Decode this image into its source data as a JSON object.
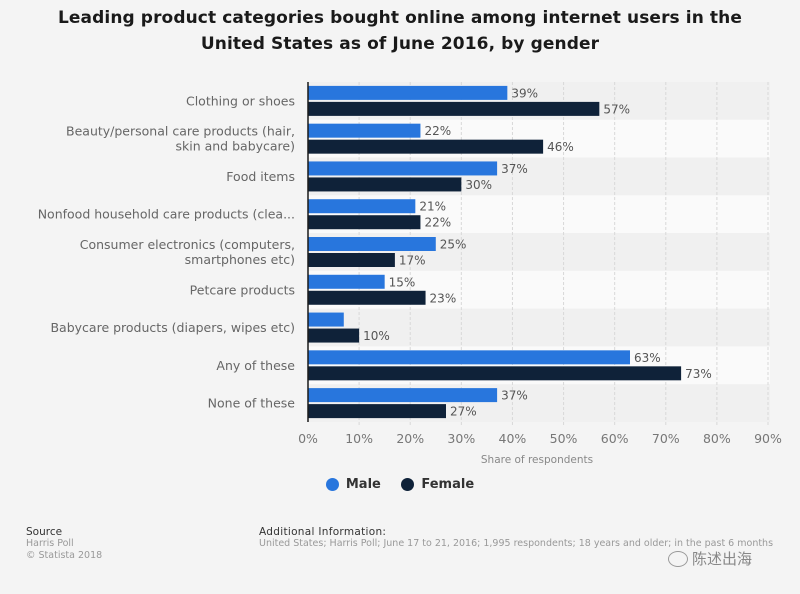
{
  "chart_data": {
    "type": "bar",
    "orientation": "horizontal",
    "title": "Leading product categories bought online among internet users in the United States as of June 2016, by gender",
    "title_lines": [
      "Leading product categories bought online among internet users in the",
      "United States as of June 2016, by gender"
    ],
    "categories": [
      "Clothing or shoes",
      "Beauty/personal care products (hair, skin and babycare)",
      "Food items",
      "Nonfood household care products (clea...",
      "Consumer electronics (computers, smartphones etc)",
      "Petcare products",
      "Babycare products (diapers, wipes etc)",
      "Any of these",
      "None of these"
    ],
    "category_label_lines": [
      [
        "Clothing or shoes"
      ],
      [
        "Beauty/personal care products (hair,",
        "skin and babycare)"
      ],
      [
        "Food items"
      ],
      [
        "Nonfood household care products (clea..."
      ],
      [
        "Consumer electronics (computers,",
        "smartphones etc)"
      ],
      [
        "Petcare products"
      ],
      [
        "Babycare products (diapers, wipes etc)"
      ],
      [
        "Any of these"
      ],
      [
        "None of these"
      ]
    ],
    "series": [
      {
        "name": "Male",
        "color": "#2876dd",
        "values": [
          39,
          22,
          37,
          21,
          25,
          15,
          7,
          63,
          37
        ],
        "labels": [
          "39%",
          "22%",
          "37%",
          "21%",
          "25%",
          "15%",
          "",
          "63%",
          "37%"
        ]
      },
      {
        "name": "Female",
        "color": "#0f2239",
        "values": [
          57,
          46,
          30,
          22,
          17,
          23,
          10,
          73,
          27
        ],
        "labels": [
          "57%",
          "46%",
          "30%",
          "22%",
          "17%",
          "23%",
          "10%",
          "73%",
          "27%"
        ]
      }
    ],
    "xlabel": "Share of respondents",
    "ylabel": "",
    "xlim": [
      0,
      90
    ],
    "xticks": [
      0,
      10,
      20,
      30,
      40,
      50,
      60,
      70,
      80,
      90
    ],
    "xtick_labels": [
      "0%",
      "10%",
      "20%",
      "30%",
      "40%",
      "50%",
      "60%",
      "70%",
      "80%",
      "90%"
    ],
    "grid": true,
    "legend_position": "bottom-center"
  },
  "legend": {
    "items": [
      {
        "label": "Male",
        "color": "#2876dd"
      },
      {
        "label": "Female",
        "color": "#0f2239"
      }
    ]
  },
  "footer": {
    "source_heading": "Source",
    "source_lines": [
      "Harris Poll",
      "© Statista 2018"
    ],
    "additional_heading": "Additional Information:",
    "additional_text": "United States; Harris Poll; June 17 to 21, 2016; 1,995 respondents; 18 years and older; in the past 6 months"
  },
  "watermark": {
    "text": "陈述出海"
  }
}
